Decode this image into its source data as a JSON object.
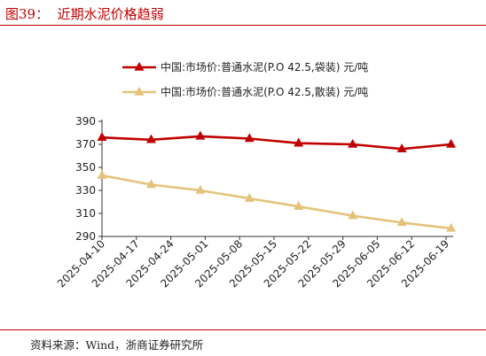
{
  "header": {
    "figure_title": "图39：  近期水泥价格趋弱"
  },
  "footer": {
    "source": "资料来源：Wind，浙商证券研究所"
  },
  "colors": {
    "series_1": "#c00000",
    "series_2": "#e5c27a",
    "axis": "#333333"
  },
  "chart_data": {
    "type": "line",
    "title": "",
    "xlabel": "",
    "ylabel": "",
    "ylim": [
      290,
      390
    ],
    "yticks": [
      290,
      310,
      330,
      350,
      370,
      390
    ],
    "grid": false,
    "legend_position": "top-center",
    "x_tick_labels": [
      "2025-04-10",
      "2025-04-17",
      "2025-04-24",
      "2025-05-01",
      "2025-05-08",
      "2025-05-15",
      "2025-05-22",
      "2025-05-29",
      "2025-06-05",
      "2025-06-12",
      "2025-06-19"
    ],
    "series": [
      {
        "name": "中国:市场价:普通水泥(P.O 42.5,袋装) 元/吨",
        "marker": "triangle",
        "points": [
          {
            "x": "2025-04-10",
            "y": 376
          },
          {
            "x": "2025-04-20",
            "y": 374
          },
          {
            "x": "2025-04-30",
            "y": 377
          },
          {
            "x": "2025-05-10",
            "y": 375
          },
          {
            "x": "2025-05-20",
            "y": 371
          },
          {
            "x": "2025-05-31",
            "y": 370
          },
          {
            "x": "2025-06-10",
            "y": 366
          },
          {
            "x": "2025-06-20",
            "y": 370
          }
        ]
      },
      {
        "name": "中国:市场价:普通水泥(P.O 42.5,散装) 元/吨",
        "marker": "triangle",
        "points": [
          {
            "x": "2025-04-10",
            "y": 343
          },
          {
            "x": "2025-04-20",
            "y": 335
          },
          {
            "x": "2025-04-30",
            "y": 330
          },
          {
            "x": "2025-05-10",
            "y": 323
          },
          {
            "x": "2025-05-20",
            "y": 316
          },
          {
            "x": "2025-05-31",
            "y": 308
          },
          {
            "x": "2025-06-10",
            "y": 302
          },
          {
            "x": "2025-06-20",
            "y": 297
          }
        ]
      }
    ]
  }
}
